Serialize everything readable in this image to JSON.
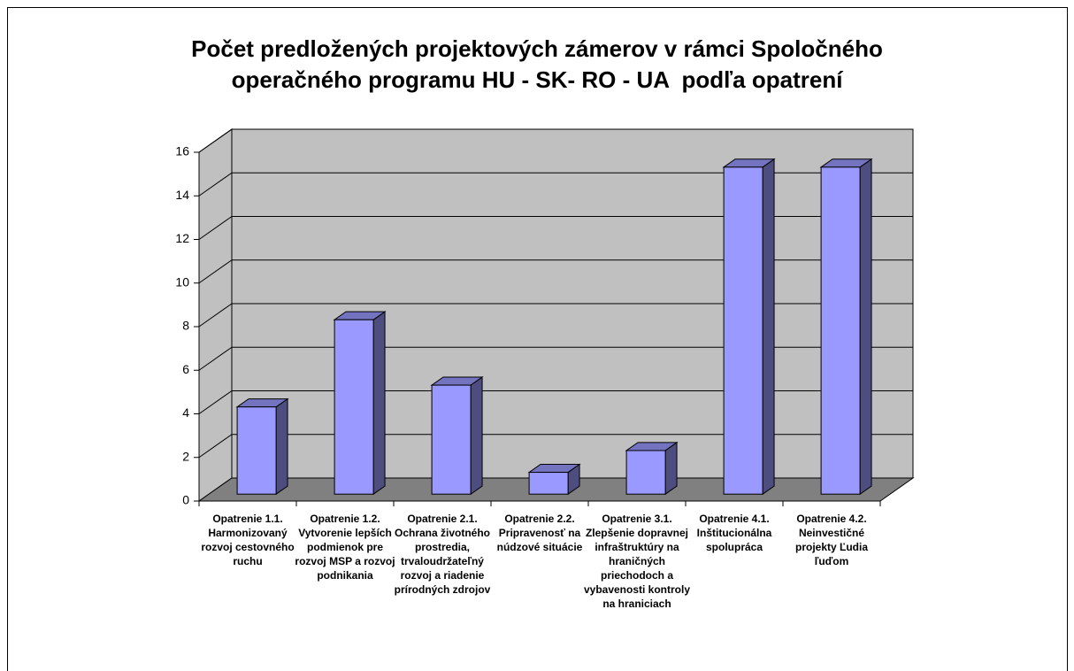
{
  "chart_data": {
    "type": "bar3d",
    "title": "Počet predložených projektových zámerov v rámci Spoločného operačného programu HU - SK- RO - UA  podľa opatrení",
    "categories": [
      "Opatrenie 1.1. Harmonizovaný rozvoj cestovného ruchu",
      "Opatrenie 1.2. Vytvorenie lepších podmienok pre rozvoj MSP a rozvoj podnikania",
      "Opatrenie 2.1. Ochrana životného prostredia, trvaloudržateľný rozvoj a riadenie prírodných zdrojov",
      "Opatrenie 2.2. Pripravenosť na núdzové situácie",
      "Opatrenie 3.1. Zlepšenie dopravnej infraštruktúry na hraničných priechodoch a vybavenosti kontroly na hraniciach",
      "Opatrenie 4.1. Inštitucionálna spolupráca",
      "Opatrenie 4.2. Neinvestičné projekty Ľudia ľuďom"
    ],
    "values": [
      4,
      8,
      5,
      1,
      2,
      15,
      15
    ],
    "color": "#9999ff",
    "ylim": [
      0,
      16
    ],
    "yticks": [
      0,
      2,
      4,
      6,
      8,
      10,
      12,
      14,
      16
    ],
    "grid": true
  }
}
